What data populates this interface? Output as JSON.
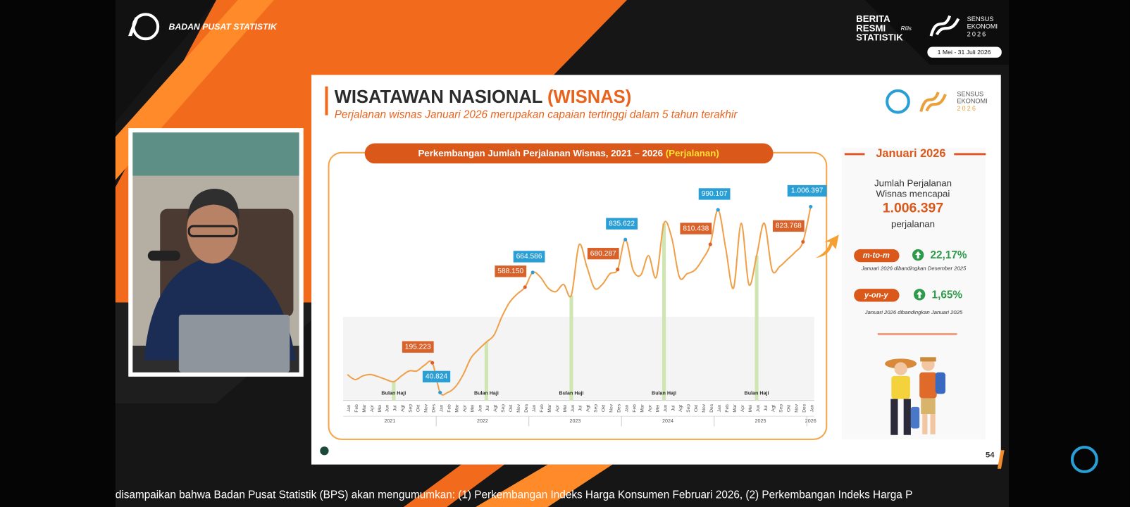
{
  "header": {
    "org": "BADAN PUSAT STATISTIK",
    "brs": [
      "BERITA",
      "RESMI",
      "STATISTIK"
    ],
    "brs_script": "Rilis",
    "sensus": [
      "SENSUS",
      "EKONOMI",
      "2026"
    ],
    "period": "1 Mei - 31 Juli 2026"
  },
  "slide": {
    "title": "WISATAWAN NASIONAL ",
    "title_accent": "(WISNAS)",
    "subtitle": "Perjalanan wisnas Januari 2026 merupakan capaian tertinggi dalam 5 tahun terakhir",
    "sensus": [
      "SENSUS",
      "EKONOMI",
      "2026"
    ],
    "page": "54"
  },
  "chart_data": {
    "type": "line",
    "title": "Perkembangan Jumlah Perjalanan Wisnas, 2021 – 2026 ",
    "title_unit": "(Perjalanan)",
    "color": "#f0a04b",
    "high_color": "#2a9fd6",
    "low_color": "#d9622b",
    "annotation_color": "#cfe6b3",
    "categories": [
      "Jan",
      "Feb",
      "Mar",
      "Apr",
      "Mei",
      "Jun",
      "Jul",
      "Agt",
      "Sep",
      "Okt",
      "Nov",
      "Des",
      "Jan",
      "Feb",
      "Mar",
      "Apr",
      "Mei",
      "Jun",
      "Jul",
      "Agt",
      "Sep",
      "Okt",
      "Nov",
      "Des",
      "Jan",
      "Feb",
      "Mar",
      "Apr",
      "Mei",
      "Jun",
      "Jul",
      "Agt",
      "Sep",
      "Okt",
      "Nov",
      "Des",
      "Jan",
      "Feb",
      "Mar",
      "Apr",
      "Mei",
      "Jun",
      "Jul",
      "Agt",
      "Sep",
      "Okt",
      "Nov",
      "Des",
      "Jan",
      "Feb",
      "Mar",
      "Apr",
      "Mei",
      "Jun",
      "Jul",
      "Agt",
      "Sep",
      "Okt",
      "Nov",
      "Des",
      "Jan"
    ],
    "years": [
      "2021",
      "2022",
      "2023",
      "2024",
      "2025",
      "2026"
    ],
    "values": [
      134000,
      108000,
      127000,
      134000,
      123000,
      108000,
      97000,
      127000,
      153000,
      153000,
      183000,
      195223,
      40824,
      41000,
      71000,
      134000,
      220000,
      265000,
      303000,
      340000,
      434000,
      509000,
      553000,
      588150,
      664586,
      640000,
      583000,
      565000,
      602000,
      546000,
      808000,
      696000,
      583000,
      602000,
      658000,
      680287,
      835622,
      677000,
      651000,
      752000,
      640000,
      920000,
      845000,
      640000,
      658000,
      677000,
      733000,
      810438,
      990107,
      789000,
      583000,
      920000,
      602000,
      752000,
      920000,
      677000,
      696000,
      733000,
      771000,
      823768,
      1006397
    ],
    "value_labels": [
      null,
      null,
      null,
      null,
      null,
      null,
      null,
      null,
      null,
      null,
      null,
      "195.223",
      "40.824",
      null,
      null,
      null,
      null,
      null,
      null,
      null,
      null,
      null,
      null,
      "588.150",
      "664.586",
      null,
      null,
      null,
      null,
      null,
      null,
      null,
      null,
      null,
      null,
      "680.287",
      "835.622",
      null,
      null,
      null,
      null,
      null,
      null,
      null,
      null,
      null,
      null,
      "810.438",
      "990.107",
      null,
      null,
      null,
      null,
      null,
      null,
      null,
      null,
      null,
      null,
      "823.768",
      "1.006.397"
    ],
    "annotations": [
      {
        "label": "Bulan Haji",
        "index": 6
      },
      {
        "label": "Bulan Haji",
        "index": 18
      },
      {
        "label": "Bulan Haji",
        "index": 29
      },
      {
        "label": "Bulan Haji",
        "index": 41
      },
      {
        "label": "Bulan Haji",
        "index": 53
      }
    ]
  },
  "panel": {
    "heading": "Januari 2026",
    "line1": "Jumlah Perjalanan",
    "line2": "Wisnas mencapai",
    "total": "1.006.397",
    "unit": "perjalanan",
    "mtm": {
      "label": "m-to-m",
      "value": "22,17%",
      "note": "Januari 2026 dibandingkan Desember 2025"
    },
    "yoy": {
      "label": "y-on-y",
      "value": "1,65%",
      "note": "Januari 2026 dibandingkan Januari 2025"
    }
  },
  "ticker": "disampaikan bahwa Badan Pusat Statistik (BPS) akan mengumumkan: (1) Perkembangan Indeks Harga Konsumen Februari 2026, (2) Perkembangan Indeks Harga P"
}
